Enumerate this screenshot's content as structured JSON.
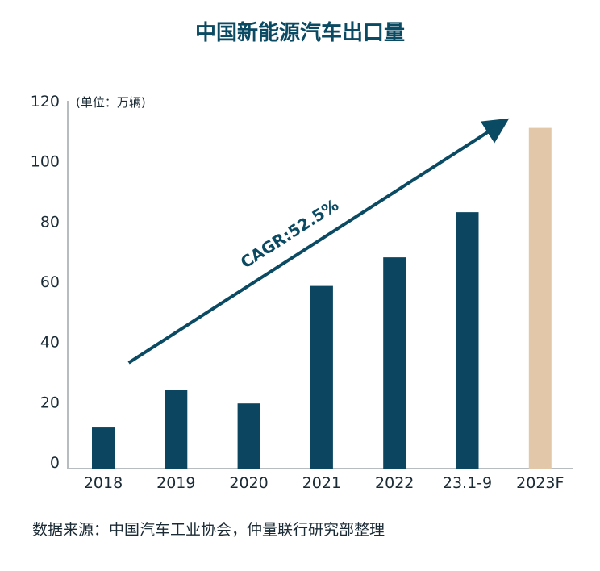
{
  "chart_data": {
    "type": "bar",
    "title": "中国新能源汽车出口量",
    "unit_label": "(单位：万辆)",
    "categories": [
      "2018",
      "2019",
      "2020",
      "2021",
      "2022",
      "23.1-9",
      "2023F"
    ],
    "values": [
      11.5,
      24,
      19.5,
      58.5,
      68,
      83,
      111
    ],
    "forecast": [
      false,
      false,
      false,
      false,
      false,
      false,
      true
    ],
    "ylim": [
      0,
      120
    ],
    "yticks": [
      "0",
      "20",
      "40",
      "60",
      "80",
      "100",
      "120"
    ],
    "xlabel": "",
    "ylabel": "",
    "grid": false,
    "annotation": {
      "text": "CAGR:52.5%",
      "arrow_from": {
        "category_index": 0.35,
        "value": 33
      },
      "arrow_to": {
        "category_index": 5.5,
        "value": 113
      }
    },
    "colors": {
      "actual": "#0b4560",
      "forecast": "#e2c7a8",
      "axis": "#b7bcc0",
      "title": "#0b4a63",
      "text": "#1b2b35"
    }
  },
  "source": "数据来源：中国汽车工业协会，仲量联行研究部整理"
}
